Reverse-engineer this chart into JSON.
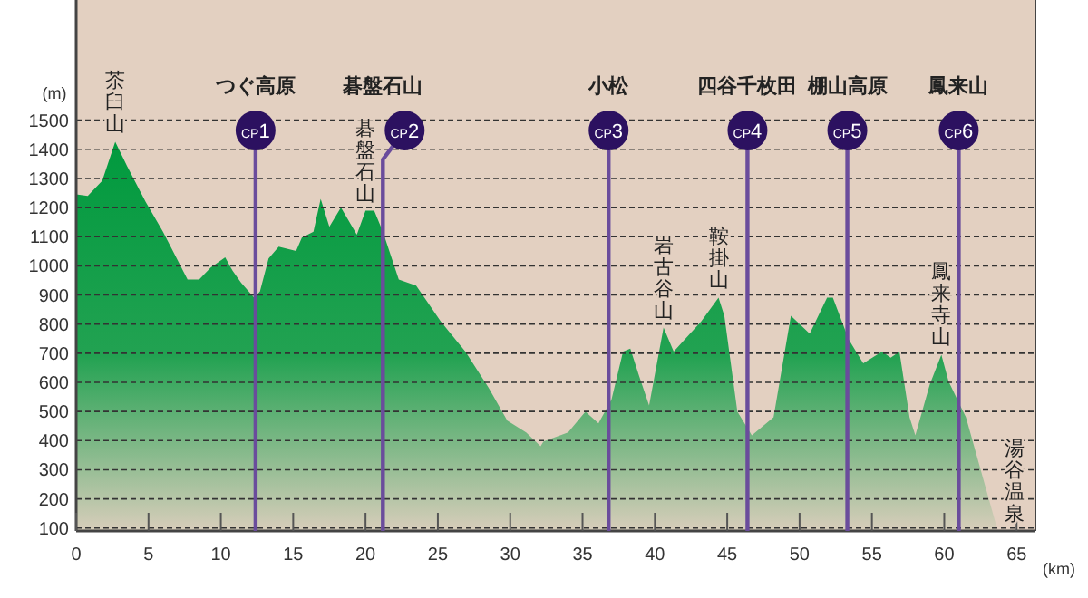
{
  "chart_data": {
    "type": "area",
    "xlabel": "(km)",
    "ylabel": "(m)",
    "xlim": [
      0,
      66.3
    ],
    "ylim": [
      90,
      1900
    ],
    "xticks": [
      0,
      5,
      10,
      15,
      20,
      25,
      30,
      35,
      40,
      45,
      50,
      55,
      60,
      65
    ],
    "yticks": [
      100,
      200,
      300,
      400,
      500,
      600,
      700,
      800,
      900,
      1000,
      1100,
      1200,
      1300,
      1400,
      1500
    ],
    "grid": "y",
    "line_style": "dashed",
    "series": [
      {
        "color": "#009a3e",
        "x": [
          0,
          0.8,
          1.8,
          2.7,
          3.5,
          4.8,
          6.0,
          7.7,
          8.5,
          9.3,
          10.3,
          10.8,
          11.4,
          12.3,
          12.7,
          13.3,
          14.0,
          15.2,
          15.6,
          16.4,
          16.9,
          17.5,
          18.3,
          19.4,
          20.0,
          20.6,
          21.2,
          22.3,
          23.5,
          25.2,
          26.9,
          28.5,
          29.8,
          31.1,
          32.1,
          32.3,
          34.0,
          35.2,
          36.1,
          37.0,
          37.8,
          38.3,
          38.9,
          39.6,
          40.6,
          41.3,
          43.2,
          44.4,
          44.8,
          45.7,
          46.7,
          48.2,
          49.4,
          50.7,
          51.9,
          52.3,
          53.4,
          54.4,
          55.7,
          56.3,
          56.9,
          57.6,
          58.0,
          59.0,
          59.8,
          60.3,
          61.1,
          61.5,
          63.7
        ],
        "values": [
          1245,
          1240,
          1292,
          1426,
          1344,
          1220,
          1117,
          953,
          953,
          994,
          1029,
          984,
          942,
          891,
          912,
          1025,
          1066,
          1051,
          1097,
          1117,
          1230,
          1134,
          1200,
          1107,
          1189,
          1189,
          1117,
          953,
          932,
          809,
          706,
          582,
          469,
          428,
          381,
          397,
          428,
          500,
          459,
          541,
          706,
          716,
          623,
          521,
          788,
          706,
          809,
          891,
          829,
          500,
          418,
          480,
          829,
          767,
          891,
          891,
          747,
          665,
          706,
          685,
          706,
          480,
          418,
          593,
          695,
          603,
          521,
          480,
          90
        ]
      }
    ],
    "ref_lines": [
      {
        "axis": "x",
        "value": 12.4,
        "label": "つぐ高原",
        "color": "#6a4c9c"
      },
      {
        "axis": "x",
        "value": 21.2,
        "label": "碁盤石山",
        "color": "#6a4c9c"
      },
      {
        "axis": "x",
        "value": 36.8,
        "label": "小松",
        "color": "#6a4c9c"
      },
      {
        "axis": "x",
        "value": 46.4,
        "label": "四谷千枚田",
        "color": "#6a4c9c"
      },
      {
        "axis": "x",
        "value": 53.3,
        "label": "棚山高原",
        "color": "#6a4c9c"
      },
      {
        "axis": "x",
        "value": 61.0,
        "label": "鳳来山",
        "color": "#6a4c9c"
      }
    ],
    "annotations": [
      "CP1",
      "CP2",
      "CP3",
      "CP4",
      "CP5",
      "CP6",
      {
        "text": "茶臼山",
        "x": 2.7,
        "y": 1426
      },
      {
        "text": "碁盤石山",
        "x": 20.0,
        "y": 1189
      },
      {
        "text": "岩古谷山",
        "x": 40.6,
        "y": 788
      },
      {
        "text": "鞍掛山",
        "x": 44.4,
        "y": 891
      },
      {
        "text": "鳳来寺山",
        "x": 59.8,
        "y": 695
      },
      {
        "text": "湯谷温泉",
        "x": 63.7,
        "y": 90
      }
    ]
  }
}
